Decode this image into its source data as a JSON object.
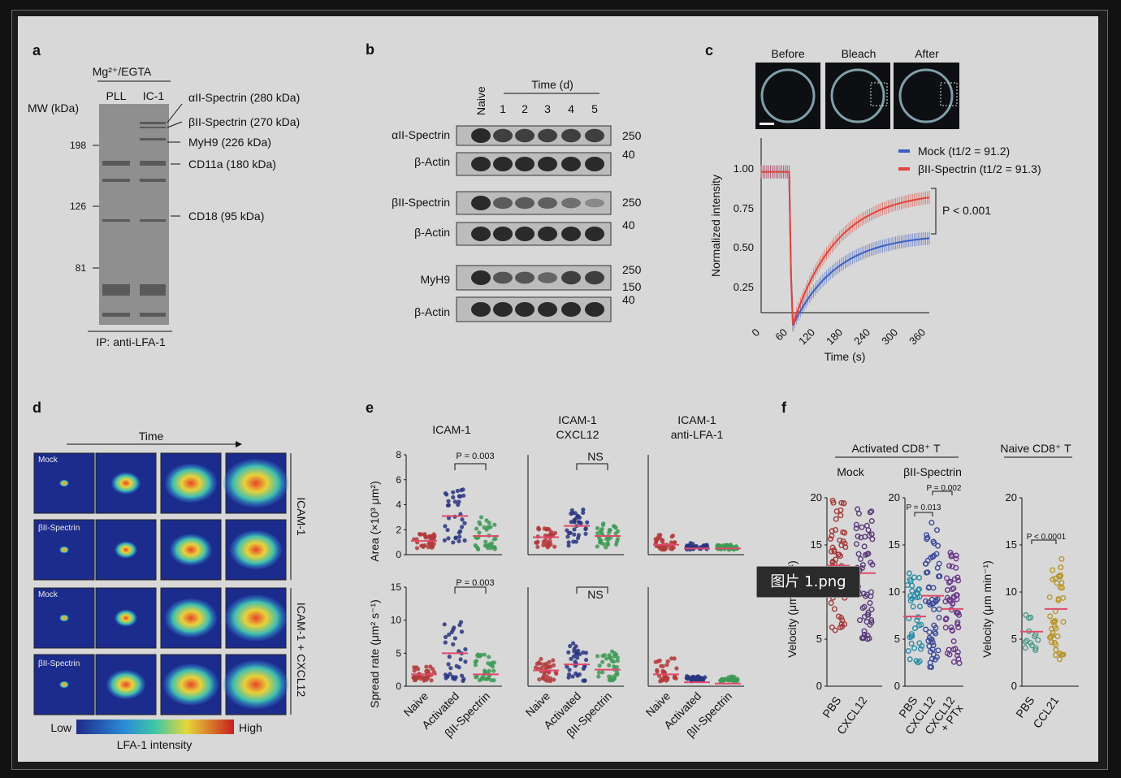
{
  "viewer": {
    "tooltip": "图片 1.png"
  },
  "panels": {
    "a": {
      "letter": "a",
      "header": "Mg²⁺/EGTA",
      "lanes": [
        "PLL",
        "IC-1"
      ],
      "mw_label": "MW (kDa)",
      "mw_ticks": [
        "198",
        "126",
        "81"
      ],
      "bands": [
        "αII-Spectrin (280 kDa)",
        "βII-Spectrin (270 kDa)",
        "MyH9 (226 kDa)",
        "CD11a (180 kDa)",
        "CD18 (95 kDa)"
      ],
      "footer": "IP: anti-LFA-1"
    },
    "b": {
      "letter": "b",
      "naive": "Naive",
      "time_label": "Time (d)",
      "days": [
        "1",
        "2",
        "3",
        "4",
        "5"
      ],
      "rows": [
        "αII-Spectrin",
        "β-Actin",
        "βII-Spectrin",
        "β-Actin",
        "MyH9",
        "β-Actin"
      ],
      "mw_marks": [
        "250",
        "40",
        "250",
        "40",
        "250",
        "150",
        "40"
      ]
    },
    "c": {
      "letter": "c",
      "images": [
        "Before",
        "Bleach",
        "After"
      ],
      "legend": [
        {
          "label": "Mock (t1/2 = 91.2)",
          "color": "#3b5fc4"
        },
        {
          "label": "βII-Spectrin (t1/2 = 91.3)",
          "color": "#e0453a"
        }
      ],
      "pvalue": "P < 0.001",
      "ylabel": "Normalized intensity",
      "xlabel": "Time (s)",
      "yticks": [
        "1.00",
        "0.75",
        "0.50",
        "0.25"
      ],
      "xticks": [
        "0",
        "60",
        "120",
        "180",
        "240",
        "300",
        "360"
      ]
    },
    "d": {
      "letter": "d",
      "time_label": "Time",
      "rows": [
        "Mock",
        "βII-Spectrin",
        "Mock",
        "βII-Spectrin"
      ],
      "side_labels": [
        "ICAM-1",
        "ICAM-1\n+ CXCL12"
      ],
      "scale_low": "Low",
      "scale_high": "High",
      "scale_title": "LFA-1 intensity"
    },
    "e": {
      "letter": "e",
      "groups": [
        "ICAM-1",
        "ICAM-1\nCXCL12",
        "ICAM-1\nanti-LFA-1"
      ],
      "ylabel_top": "Area (×10³ μm²)",
      "ylabel_bottom": "Spread rate (μm² s⁻¹)",
      "yticks_top": [
        "0",
        "2",
        "4",
        "6",
        "8"
      ],
      "yticks_bottom": [
        "0",
        "5",
        "10",
        "15"
      ],
      "categories": [
        "Naive",
        "Activated",
        "βII-Spectrin"
      ],
      "stats_top": [
        "P = 0.003",
        "NS"
      ],
      "stats_bottom": [
        "P = 0.003",
        "NS"
      ]
    },
    "f": {
      "letter": "f",
      "header_left": "Activated CD8⁺ T",
      "header_right": "Naive CD8⁺ T",
      "sub_mock": "Mock",
      "sub_spectrin": "βII-Spectrin",
      "ylabel": "Velocity (μm min⁻¹)",
      "yticks": [
        "0",
        "5",
        "10",
        "15",
        "20"
      ],
      "x_mock": [
        "PBS",
        "CXCL12"
      ],
      "x_spectrin": [
        "PBS",
        "CXCL12",
        "CXCL12\n+ PTx"
      ],
      "x_naive": [
        "PBS",
        "CCL21"
      ],
      "stats": [
        "P = 0.013",
        "P = 0.002",
        "P < 0.0001"
      ]
    }
  }
}
